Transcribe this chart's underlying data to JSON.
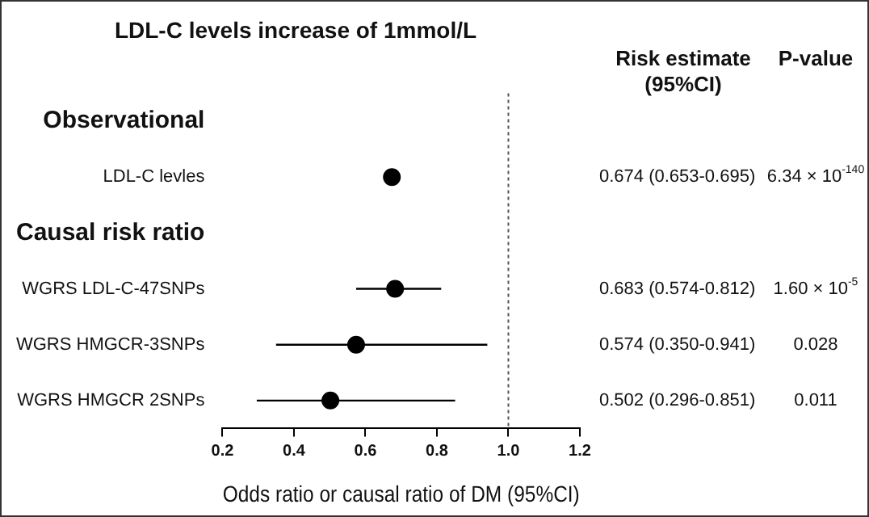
{
  "chart_data": {
    "type": "scatter",
    "orientation": "horizontal",
    "title": "LDL-C levels increase of 1mmol/L",
    "xlabel": "Odds ratio or causal ratio of DM (95%CI)",
    "categories": [
      "Observational",
      "LDL-C levles",
      "Causal risk ratio",
      "WGRS LDL-C-47SNPs",
      "WGRS HMGCR-3SNPs",
      "WGRS HMGCR 2SNPs"
    ],
    "values": [
      null,
      0.674,
      null,
      0.683,
      0.574,
      0.502
    ],
    "errors": [
      null,
      [
        0.653,
        0.695
      ],
      null,
      [
        0.574,
        0.812
      ],
      [
        0.35,
        0.941
      ],
      [
        0.296,
        0.851
      ]
    ],
    "value_labels": [
      null,
      "0.674 (0.653-0.695)",
      null,
      "0.683 (0.574-0.812)",
      "0.574 (0.350-0.941)",
      "0.502 (0.296-0.851)"
    ],
    "color": "#000000",
    "marker": "circle",
    "grid": false,
    "legend": false,
    "xlim": [
      0.2,
      1.2
    ],
    "xticks": [
      0.2,
      0.4,
      0.6,
      0.8,
      {
        "value": 1.0,
        "label": "1.0"
      },
      1.2
    ],
    "ref_lines": [
      {
        "axis": "x",
        "value": 1.0,
        "line_style": "dotted",
        "color": "#555555"
      }
    ],
    "annotations": [
      "Risk estimate (95%CI)",
      "P-value",
      "6.34 × 10$^{-140}$",
      "1.60 × 10$^{-5}$",
      "0.028",
      "0.011"
    ]
  }
}
